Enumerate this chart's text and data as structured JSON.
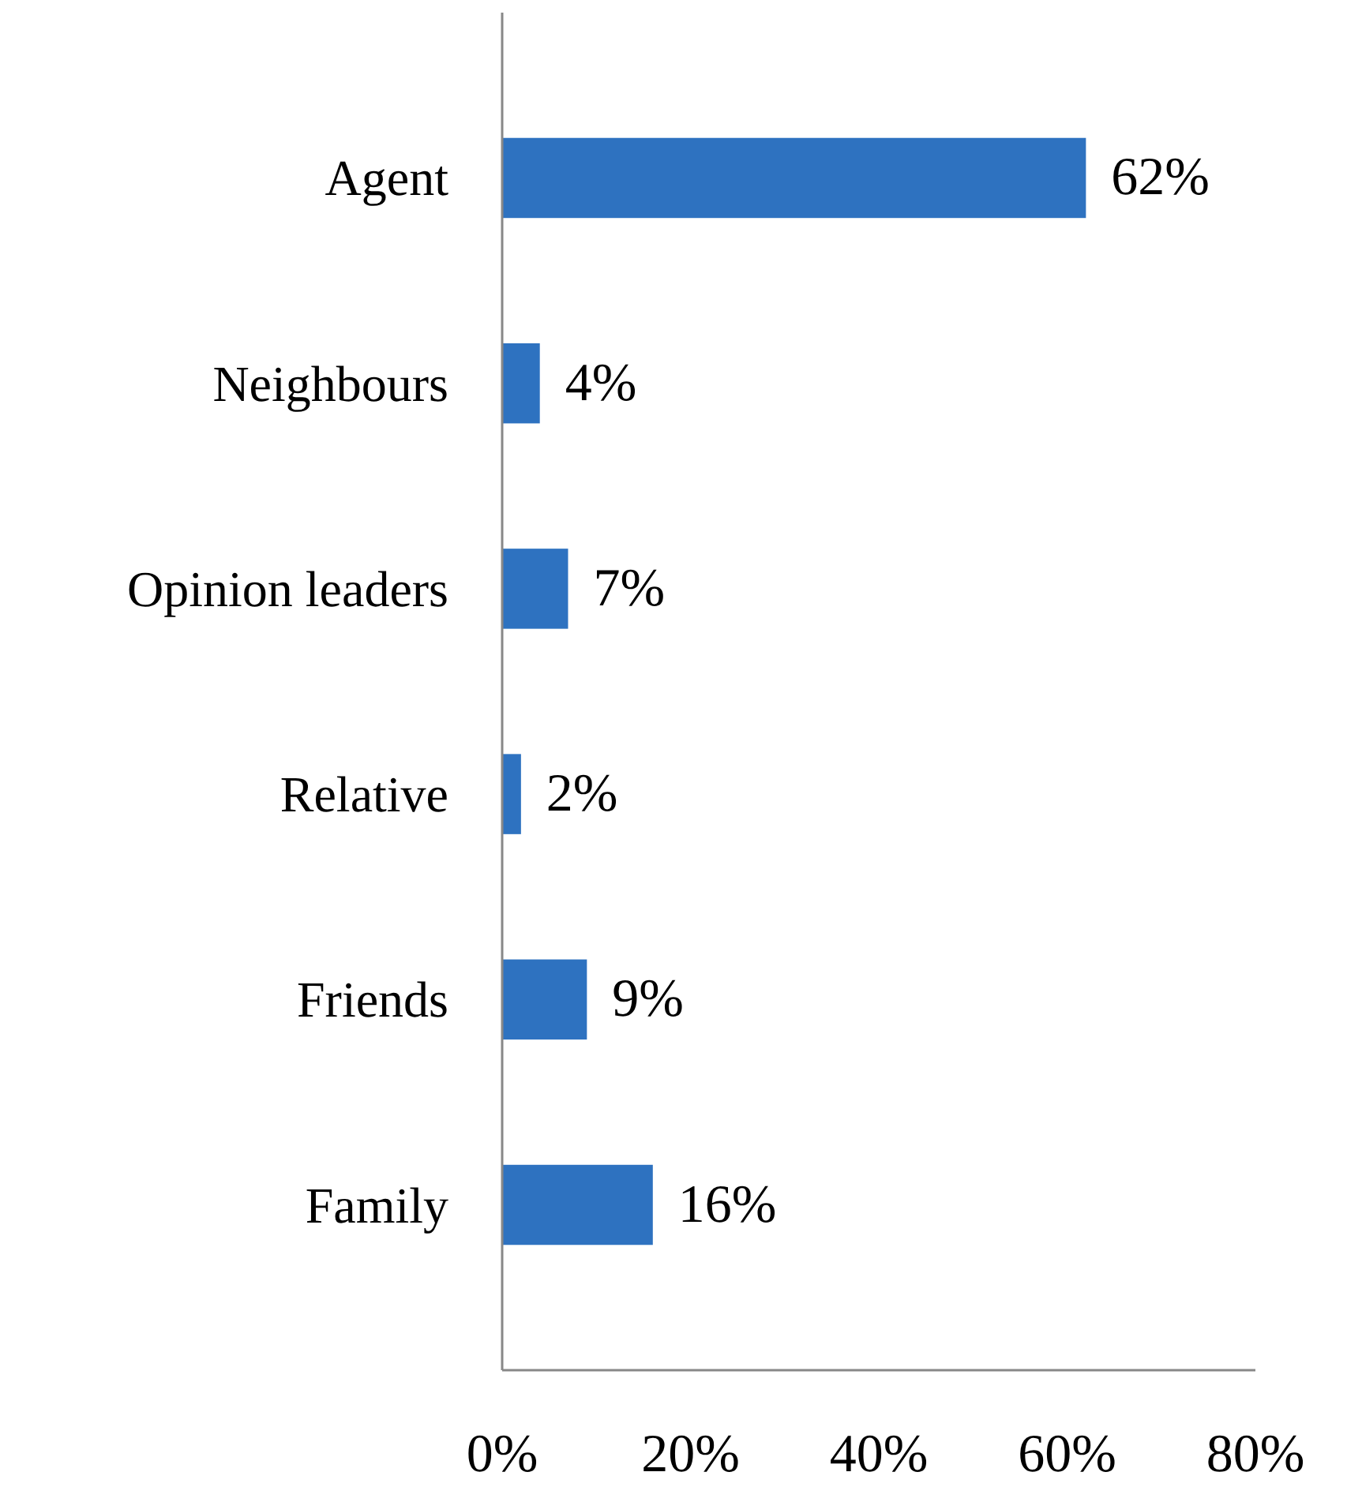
{
  "chart_data": {
    "type": "bar",
    "orientation": "horizontal",
    "categories": [
      "Agent",
      "Neighbours",
      "Opinion leaders",
      "Relative",
      "Friends",
      "Family"
    ],
    "values": [
      62,
      4,
      7,
      2,
      9,
      16
    ],
    "color": "#2e72c0",
    "data_labels": true,
    "value_labels": [
      "62%",
      "4%",
      "7%",
      "2%",
      "9%",
      "16%"
    ],
    "xlim": [
      0,
      80
    ],
    "xticks": [
      {
        "value": 0,
        "label": "0%"
      },
      {
        "value": 20,
        "label": "20%"
      },
      {
        "value": 40,
        "label": "40%"
      },
      {
        "value": 60,
        "label": "60%"
      },
      {
        "value": 80,
        "label": "80%"
      }
    ],
    "grid": false
  }
}
